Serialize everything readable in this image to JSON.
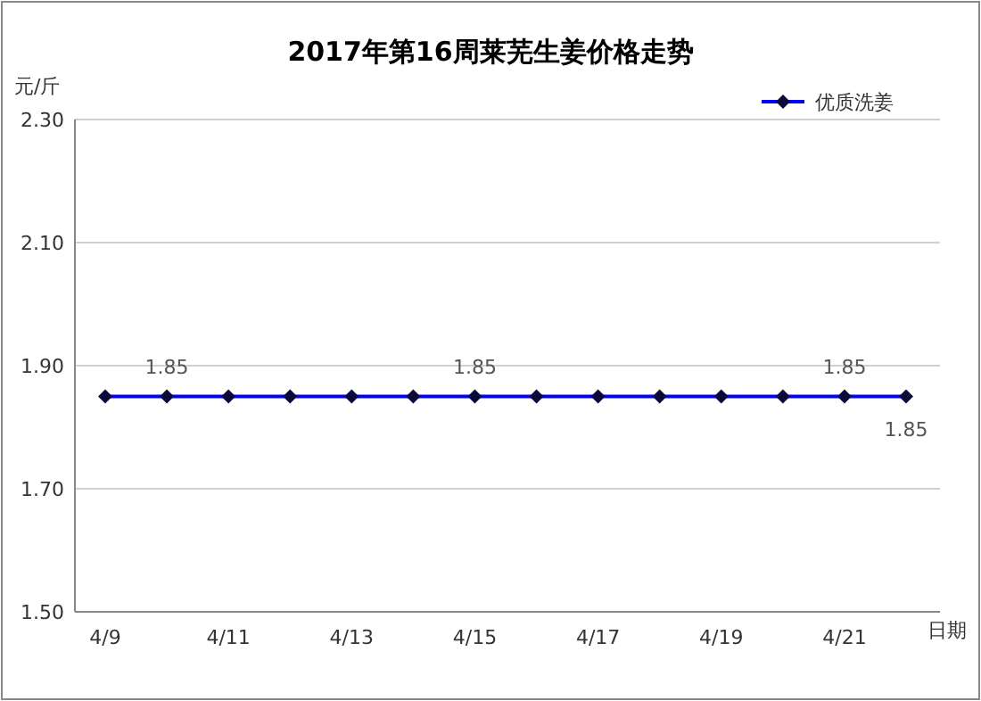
{
  "chart_data": {
    "type": "line",
    "title": "2017年第16周莱芜生姜价格走势",
    "ylabel": "元/斤",
    "xlabel": "日期",
    "categories": [
      "4/9",
      null,
      "4/11",
      null,
      "4/13",
      null,
      "4/15",
      null,
      "4/17",
      null,
      "4/19",
      null,
      "4/21",
      null
    ],
    "series": [
      {
        "name": "优质洗姜",
        "color": "#0000ff",
        "values": [
          1.85,
          1.85,
          1.85,
          1.85,
          1.85,
          1.85,
          1.85,
          1.85,
          1.85,
          1.85,
          1.85,
          1.85,
          1.85,
          1.85
        ],
        "value_labels": [
          null,
          "1.85",
          null,
          null,
          null,
          null,
          "1.85",
          null,
          null,
          null,
          null,
          null,
          "1.85",
          "1.85"
        ]
      }
    ],
    "ylim": [
      1.5,
      2.3
    ],
    "yticks": [
      {
        "value": 1.5,
        "label": "1.50"
      },
      {
        "value": 1.7,
        "label": "1.70"
      },
      {
        "value": 1.9,
        "label": "1.90"
      },
      {
        "value": 2.1,
        "label": "2.10"
      },
      {
        "value": 2.3,
        "label": "2.30"
      }
    ],
    "grid": "y",
    "legend": "top right",
    "marker": "diamond",
    "line_style": "solid"
  }
}
